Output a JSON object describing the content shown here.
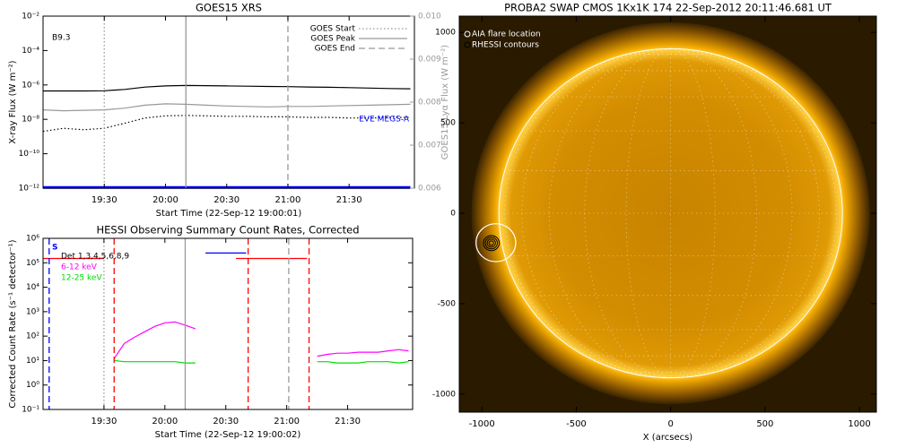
{
  "chart_data": [
    {
      "type": "line",
      "title": "GOES15 XRS",
      "xlabel": "Start Time (22-Sep-12 19:00:01)",
      "ylabel": "X-ray Flux (W m⁻²)",
      "y2label": "GOES15 Lyα Flux (W m⁻²)",
      "annotation": "B9.3",
      "x": [
        0,
        10,
        20,
        30,
        40,
        50,
        60,
        70,
        80,
        90,
        100,
        110,
        120,
        130,
        140,
        150,
        160,
        170,
        180
      ],
      "xlim": [
        0,
        182
      ],
      "xticks": [
        {
          "value": 30,
          "label": "19:30"
        },
        {
          "value": 60,
          "label": "20:00"
        },
        {
          "value": 90,
          "label": "20:30"
        },
        {
          "value": 120,
          "label": "21:00"
        },
        {
          "value": 150,
          "label": "21:30"
        }
      ],
      "ylog": true,
      "ylim": [
        1e-12,
        0.01
      ],
      "yticks": [
        {
          "value": 1e-12,
          "label": "10⁻¹²"
        },
        {
          "value": 1e-10,
          "label": "10⁻¹⁰"
        },
        {
          "value": 1e-08,
          "label": "10⁻⁸"
        },
        {
          "value": 1e-06,
          "label": "10⁻⁶"
        },
        {
          "value": 0.0001,
          "label": "10⁻⁴"
        },
        {
          "value": 0.01,
          "label": "10⁻²"
        }
      ],
      "y2lim": [
        0.006,
        0.01
      ],
      "y2ticks": [
        0.006,
        0.007,
        0.008,
        0.009,
        {
          "value": 0.01,
          "label": "0.010"
        }
      ],
      "y2color": "#999999",
      "legend": "upper right",
      "series": [
        {
          "color": "#000000",
          "values": [
            4.5e-07,
            4.5e-07,
            4.5e-07,
            4.6e-07,
            5.5e-07,
            7.5e-07,
            8.8e-07,
            9.3e-07,
            9.1e-07,
            8.8e-07,
            8.5e-07,
            8.2e-07,
            8e-07,
            7.6e-07,
            7.3e-07,
            7e-07,
            6.6e-07,
            6.2e-07,
            6e-07
          ]
        },
        {
          "color": "#000000",
          "dash": "dotted",
          "values": [
            2e-09,
            3e-09,
            2.5e-09,
            3e-09,
            6e-09,
            1.2e-08,
            1.6e-08,
            1.7e-08,
            1.6e-08,
            1.5e-08,
            1.5e-08,
            1.4e-08,
            1.4e-08,
            1.3e-08,
            1.3e-08,
            1.2e-08,
            1.2e-08,
            1.3e-08,
            1.3e-08
          ]
        },
        {
          "color": "#999999",
          "axis": "y2",
          "values": [
            0.00782,
            0.0078,
            0.00781,
            0.00782,
            0.00786,
            0.00793,
            0.00796,
            0.00795,
            0.00793,
            0.00791,
            0.0079,
            0.00789,
            0.0079,
            0.0079,
            0.00791,
            0.00792,
            0.00793,
            0.00794,
            0.00795
          ]
        },
        {
          "name": "EVE MEGS-A",
          "color": "#0000ff",
          "width": 3,
          "values": [
            1.1e-12,
            1.1e-12,
            1.1e-12,
            1.1e-12,
            1.1e-12,
            1.1e-12,
            1.1e-12,
            1.1e-12,
            1.1e-12,
            1.1e-12,
            1.1e-12,
            1.1e-12,
            1.1e-12,
            1.1e-12,
            1.1e-12,
            1.1e-12,
            1.1e-12,
            1.1e-12,
            1.1e-12
          ]
        }
      ],
      "vlines": [
        {
          "name": "GOES Start",
          "value": 30,
          "color": "#999999",
          "dash": "dotted"
        },
        {
          "name": "GOES Peak",
          "value": 70,
          "color": "#999999",
          "dash": "solid"
        },
        {
          "name": "GOES End",
          "value": 120,
          "color": "#999999",
          "dash": "dashed"
        }
      ]
    },
    {
      "type": "line",
      "title": "HESSI Observing Summary Count Rates, Corrected",
      "xlabel": "Start Time (22-Sep-12 19:00:02)",
      "ylabel": "Corrected Count Rate (s⁻¹ detector⁻¹)",
      "legend_title": "Det 1,3,4,5,6,8,9",
      "x": [
        0,
        5,
        10,
        15,
        20,
        25,
        30,
        35,
        40,
        45,
        50,
        55,
        60,
        65,
        70,
        75,
        80,
        85,
        90,
        95,
        100,
        105,
        110,
        115,
        120,
        125,
        130,
        135,
        140,
        145,
        150,
        155,
        160,
        165,
        170,
        175,
        180
      ],
      "xlim": [
        0,
        182
      ],
      "xticks": [
        {
          "value": 30,
          "label": "19:30"
        },
        {
          "value": 60,
          "label": "20:00"
        },
        {
          "value": 90,
          "label": "20:30"
        },
        {
          "value": 120,
          "label": "21:00"
        },
        {
          "value": 150,
          "label": "21:30"
        }
      ],
      "ylog": true,
      "ylim": [
        0.1,
        1000000
      ],
      "yticks": [
        {
          "value": 0.1,
          "label": "10⁻¹"
        },
        {
          "value": 1,
          "label": "10⁰"
        },
        {
          "value": 10,
          "label": "10¹"
        },
        {
          "value": 100,
          "label": "10²"
        },
        {
          "value": 1000,
          "label": "10³"
        },
        {
          "value": 10000,
          "label": "10⁴"
        },
        {
          "value": 100000,
          "label": "10⁵"
        },
        {
          "value": 1000000,
          "label": "10⁶"
        }
      ],
      "legend": "upper left",
      "series": [
        {
          "name": "S",
          "color": "#0000ff",
          "values": [
            null,
            null,
            null,
            null,
            null,
            null,
            null,
            null,
            null,
            null,
            null,
            null,
            null,
            null,
            null,
            null,
            250000,
            250000,
            250000,
            250000,
            250000,
            null,
            null,
            null,
            null,
            null,
            null,
            null,
            null,
            null,
            null,
            null,
            null,
            null,
            null,
            null,
            null
          ]
        },
        {
          "name": "6-12 keV",
          "color": "#ff00ff",
          "values": [
            null,
            null,
            null,
            null,
            null,
            null,
            null,
            12,
            50,
            90,
            150,
            250,
            350,
            380,
            280,
            200,
            null,
            null,
            null,
            null,
            null,
            null,
            null,
            null,
            null,
            null,
            null,
            15,
            18,
            20,
            20,
            22,
            22,
            22,
            25,
            28,
            25
          ]
        },
        {
          "name": "12-25 keV",
          "color": "#00dd00",
          "values": [
            null,
            null,
            null,
            null,
            null,
            null,
            null,
            10,
            9,
            9,
            9,
            9,
            9,
            9,
            8,
            8,
            null,
            null,
            null,
            null,
            null,
            null,
            null,
            null,
            null,
            null,
            null,
            9,
            9,
            8,
            8,
            8,
            9,
            9,
            9,
            8,
            9
          ]
        },
        {
          "color": "#ff0000",
          "values": [
            150000,
            150000,
            150000,
            150000,
            150000,
            150000,
            150000,
            null,
            null,
            null,
            null,
            null,
            null,
            null,
            null,
            null,
            null,
            null,
            null,
            150000,
            150000,
            150000,
            150000,
            150000,
            150000,
            150000,
            150000,
            null,
            null,
            null,
            null,
            null,
            null,
            null,
            null,
            null,
            null
          ]
        }
      ],
      "vlines": [
        {
          "value": 3,
          "color": "#0000ff",
          "dash": "dashed"
        },
        {
          "value": 30,
          "color": "#999999",
          "dash": "dotted"
        },
        {
          "value": 35,
          "color": "#ff0000",
          "dash": "dashed"
        },
        {
          "value": 70,
          "color": "#999999",
          "dash": "solid"
        },
        {
          "value": 101,
          "color": "#ff0000",
          "dash": "dashed"
        },
        {
          "value": 121,
          "color": "#999999",
          "dash": "dashed"
        },
        {
          "value": 131,
          "color": "#ff0000",
          "dash": "dashed"
        }
      ]
    },
    {
      "type": "image",
      "title": "PROBA2 SWAP CMOS 1Kx1K 174 22-Sep-2012 20:11:46.681 UT",
      "xlabel": "X (arcsecs)",
      "xlim": [
        -1120,
        1090
      ],
      "xticks": [
        -1000,
        -500,
        0,
        500,
        1000
      ],
      "ylim": [
        -1100,
        1090
      ],
      "yticks": [
        -1000,
        -500,
        0,
        500,
        1000
      ],
      "disk_radius": 910,
      "flare_location": {
        "name": "AIA flare location",
        "x": -926,
        "y": -163,
        "radius": 105
      },
      "rhessi_contours": {
        "name": "RHESSI contours",
        "x": -950,
        "y": -165,
        "radii": [
          12,
          22,
          32,
          42
        ]
      }
    }
  ]
}
